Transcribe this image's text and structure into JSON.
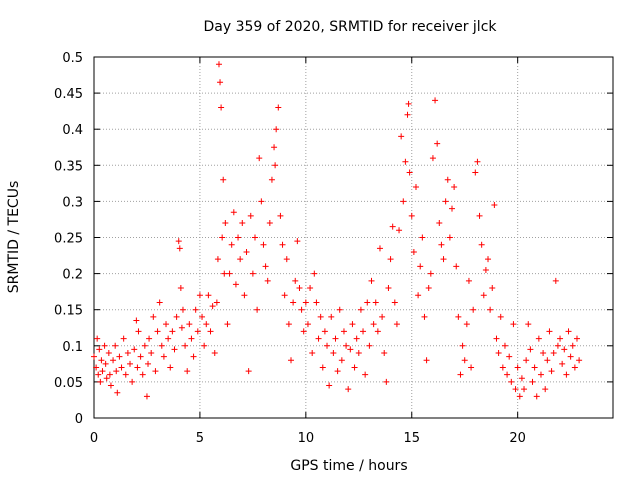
{
  "chart_data": {
    "type": "scatter",
    "title": "Day 359 of 2020, SRMTID for receiver jlck",
    "xlabel": "GPS time / hours",
    "ylabel": "SRMTID / TECUs",
    "xlim": [
      0,
      24.5
    ],
    "ylim": [
      0,
      0.5
    ],
    "xticks": [
      0,
      5,
      10,
      15,
      20
    ],
    "xtick_labels": [
      "0",
      "5",
      "10",
      "15",
      "20"
    ],
    "yticks": [
      0,
      0.05,
      0.1,
      0.15,
      0.2,
      0.25,
      0.3,
      0.35,
      0.4,
      0.45,
      0.5
    ],
    "ytick_labels": [
      "0",
      "0.05",
      "0.1",
      "0.15",
      "0.2",
      "0.25",
      "0.3",
      "0.35",
      "0.4",
      "0.45",
      "0.5"
    ],
    "grid": true,
    "marker": "+",
    "colors": {
      "series": "#ff0000",
      "grid": "#a0a0a0",
      "axis": "#000000"
    },
    "series": [
      {
        "name": "SRMTID",
        "points": [
          [
            0.0,
            0.085
          ],
          [
            0.1,
            0.07
          ],
          [
            0.15,
            0.11
          ],
          [
            0.2,
            0.06
          ],
          [
            0.25,
            0.095
          ],
          [
            0.3,
            0.05
          ],
          [
            0.35,
            0.08
          ],
          [
            0.4,
            0.065
          ],
          [
            0.5,
            0.1
          ],
          [
            0.55,
            0.075
          ],
          [
            0.6,
            0.055
          ],
          [
            0.7,
            0.09
          ],
          [
            0.75,
            0.06
          ],
          [
            0.8,
            0.045
          ],
          [
            0.9,
            0.08
          ],
          [
            1.0,
            0.1
          ],
          [
            1.05,
            0.065
          ],
          [
            1.1,
            0.035
          ],
          [
            1.2,
            0.085
          ],
          [
            1.3,
            0.07
          ],
          [
            1.4,
            0.11
          ],
          [
            1.5,
            0.06
          ],
          [
            1.6,
            0.09
          ],
          [
            1.7,
            0.075
          ],
          [
            1.8,
            0.05
          ],
          [
            1.9,
            0.095
          ],
          [
            2.0,
            0.135
          ],
          [
            2.05,
            0.07
          ],
          [
            2.1,
            0.12
          ],
          [
            2.2,
            0.085
          ],
          [
            2.3,
            0.06
          ],
          [
            2.4,
            0.1
          ],
          [
            2.5,
            0.03
          ],
          [
            2.55,
            0.075
          ],
          [
            2.6,
            0.11
          ],
          [
            2.7,
            0.09
          ],
          [
            2.8,
            0.14
          ],
          [
            2.9,
            0.065
          ],
          [
            3.0,
            0.12
          ],
          [
            3.1,
            0.16
          ],
          [
            3.2,
            0.1
          ],
          [
            3.3,
            0.085
          ],
          [
            3.4,
            0.13
          ],
          [
            3.5,
            0.11
          ],
          [
            3.6,
            0.07
          ],
          [
            3.7,
            0.12
          ],
          [
            3.8,
            0.095
          ],
          [
            3.9,
            0.14
          ],
          [
            4.0,
            0.245
          ],
          [
            4.05,
            0.235
          ],
          [
            4.1,
            0.18
          ],
          [
            4.15,
            0.125
          ],
          [
            4.2,
            0.15
          ],
          [
            4.3,
            0.1
          ],
          [
            4.4,
            0.065
          ],
          [
            4.5,
            0.13
          ],
          [
            4.6,
            0.11
          ],
          [
            4.7,
            0.085
          ],
          [
            4.8,
            0.15
          ],
          [
            4.9,
            0.12
          ],
          [
            5.0,
            0.17
          ],
          [
            5.1,
            0.14
          ],
          [
            5.2,
            0.1
          ],
          [
            5.3,
            0.13
          ],
          [
            5.4,
            0.17
          ],
          [
            5.5,
            0.12
          ],
          [
            5.6,
            0.155
          ],
          [
            5.7,
            0.09
          ],
          [
            5.8,
            0.16
          ],
          [
            5.85,
            0.22
          ],
          [
            5.9,
            0.49
          ],
          [
            5.95,
            0.465
          ],
          [
            6.0,
            0.43
          ],
          [
            6.05,
            0.25
          ],
          [
            6.1,
            0.33
          ],
          [
            6.15,
            0.2
          ],
          [
            6.2,
            0.27
          ],
          [
            6.3,
            0.13
          ],
          [
            6.4,
            0.2
          ],
          [
            6.5,
            0.24
          ],
          [
            6.6,
            0.285
          ],
          [
            6.7,
            0.185
          ],
          [
            6.8,
            0.25
          ],
          [
            6.9,
            0.22
          ],
          [
            7.0,
            0.27
          ],
          [
            7.1,
            0.17
          ],
          [
            7.2,
            0.23
          ],
          [
            7.3,
            0.065
          ],
          [
            7.4,
            0.28
          ],
          [
            7.5,
            0.2
          ],
          [
            7.6,
            0.25
          ],
          [
            7.7,
            0.15
          ],
          [
            7.8,
            0.36
          ],
          [
            7.9,
            0.3
          ],
          [
            8.0,
            0.24
          ],
          [
            8.1,
            0.21
          ],
          [
            8.2,
            0.19
          ],
          [
            8.3,
            0.27
          ],
          [
            8.4,
            0.33
          ],
          [
            8.5,
            0.375
          ],
          [
            8.55,
            0.35
          ],
          [
            8.6,
            0.4
          ],
          [
            8.7,
            0.43
          ],
          [
            8.8,
            0.28
          ],
          [
            8.9,
            0.24
          ],
          [
            9.0,
            0.17
          ],
          [
            9.1,
            0.22
          ],
          [
            9.2,
            0.13
          ],
          [
            9.3,
            0.08
          ],
          [
            9.4,
            0.16
          ],
          [
            9.5,
            0.19
          ],
          [
            9.6,
            0.245
          ],
          [
            9.7,
            0.18
          ],
          [
            9.8,
            0.15
          ],
          [
            9.9,
            0.12
          ],
          [
            10.0,
            0.16
          ],
          [
            10.1,
            0.13
          ],
          [
            10.2,
            0.18
          ],
          [
            10.3,
            0.09
          ],
          [
            10.4,
            0.2
          ],
          [
            10.5,
            0.16
          ],
          [
            10.6,
            0.11
          ],
          [
            10.7,
            0.14
          ],
          [
            10.8,
            0.07
          ],
          [
            10.9,
            0.12
          ],
          [
            11.0,
            0.1
          ],
          [
            11.1,
            0.045
          ],
          [
            11.2,
            0.14
          ],
          [
            11.3,
            0.09
          ],
          [
            11.4,
            0.11
          ],
          [
            11.5,
            0.065
          ],
          [
            11.6,
            0.15
          ],
          [
            11.7,
            0.08
          ],
          [
            11.8,
            0.12
          ],
          [
            11.9,
            0.1
          ],
          [
            12.0,
            0.04
          ],
          [
            12.1,
            0.095
          ],
          [
            12.2,
            0.13
          ],
          [
            12.3,
            0.07
          ],
          [
            12.4,
            0.11
          ],
          [
            12.5,
            0.09
          ],
          [
            12.6,
            0.15
          ],
          [
            12.7,
            0.12
          ],
          [
            12.8,
            0.06
          ],
          [
            12.9,
            0.16
          ],
          [
            13.0,
            0.1
          ],
          [
            13.1,
            0.19
          ],
          [
            13.2,
            0.13
          ],
          [
            13.3,
            0.16
          ],
          [
            13.4,
            0.12
          ],
          [
            13.5,
            0.235
          ],
          [
            13.6,
            0.14
          ],
          [
            13.7,
            0.09
          ],
          [
            13.8,
            0.05
          ],
          [
            13.9,
            0.18
          ],
          [
            14.0,
            0.22
          ],
          [
            14.1,
            0.265
          ],
          [
            14.2,
            0.16
          ],
          [
            14.3,
            0.13
          ],
          [
            14.4,
            0.26
          ],
          [
            14.5,
            0.39
          ],
          [
            14.6,
            0.3
          ],
          [
            14.7,
            0.355
          ],
          [
            14.8,
            0.42
          ],
          [
            14.85,
            0.435
          ],
          [
            14.9,
            0.34
          ],
          [
            15.0,
            0.28
          ],
          [
            15.1,
            0.23
          ],
          [
            15.2,
            0.32
          ],
          [
            15.3,
            0.17
          ],
          [
            15.4,
            0.21
          ],
          [
            15.5,
            0.25
          ],
          [
            15.6,
            0.14
          ],
          [
            15.7,
            0.08
          ],
          [
            15.8,
            0.18
          ],
          [
            15.9,
            0.2
          ],
          [
            16.0,
            0.36
          ],
          [
            16.1,
            0.44
          ],
          [
            16.2,
            0.38
          ],
          [
            16.3,
            0.27
          ],
          [
            16.4,
            0.24
          ],
          [
            16.5,
            0.22
          ],
          [
            16.6,
            0.3
          ],
          [
            16.7,
            0.33
          ],
          [
            16.8,
            0.25
          ],
          [
            16.9,
            0.29
          ],
          [
            17.0,
            0.32
          ],
          [
            17.1,
            0.21
          ],
          [
            17.2,
            0.14
          ],
          [
            17.3,
            0.06
          ],
          [
            17.4,
            0.1
          ],
          [
            17.5,
            0.08
          ],
          [
            17.6,
            0.13
          ],
          [
            17.7,
            0.19
          ],
          [
            17.8,
            0.07
          ],
          [
            17.9,
            0.15
          ],
          [
            18.0,
            0.34
          ],
          [
            18.1,
            0.355
          ],
          [
            18.2,
            0.28
          ],
          [
            18.3,
            0.24
          ],
          [
            18.4,
            0.17
          ],
          [
            18.5,
            0.205
          ],
          [
            18.6,
            0.22
          ],
          [
            18.7,
            0.15
          ],
          [
            18.8,
            0.18
          ],
          [
            18.9,
            0.295
          ],
          [
            19.0,
            0.11
          ],
          [
            19.1,
            0.09
          ],
          [
            19.2,
            0.14
          ],
          [
            19.3,
            0.07
          ],
          [
            19.4,
            0.1
          ],
          [
            19.5,
            0.06
          ],
          [
            19.6,
            0.085
          ],
          [
            19.7,
            0.05
          ],
          [
            19.8,
            0.13
          ],
          [
            19.9,
            0.04
          ],
          [
            20.0,
            0.07
          ],
          [
            20.1,
            0.03
          ],
          [
            20.2,
            0.055
          ],
          [
            20.3,
            0.04
          ],
          [
            20.4,
            0.08
          ],
          [
            20.5,
            0.13
          ],
          [
            20.6,
            0.095
          ],
          [
            20.7,
            0.05
          ],
          [
            20.8,
            0.07
          ],
          [
            20.9,
            0.03
          ],
          [
            21.0,
            0.11
          ],
          [
            21.1,
            0.06
          ],
          [
            21.2,
            0.09
          ],
          [
            21.3,
            0.04
          ],
          [
            21.4,
            0.08
          ],
          [
            21.5,
            0.12
          ],
          [
            21.6,
            0.065
          ],
          [
            21.7,
            0.09
          ],
          [
            21.8,
            0.19
          ],
          [
            21.9,
            0.1
          ],
          [
            22.0,
            0.11
          ],
          [
            22.1,
            0.075
          ],
          [
            22.2,
            0.095
          ],
          [
            22.3,
            0.06
          ],
          [
            22.4,
            0.12
          ],
          [
            22.5,
            0.085
          ],
          [
            22.6,
            0.1
          ],
          [
            22.7,
            0.07
          ],
          [
            22.8,
            0.11
          ],
          [
            22.9,
            0.08
          ]
        ]
      }
    ]
  }
}
